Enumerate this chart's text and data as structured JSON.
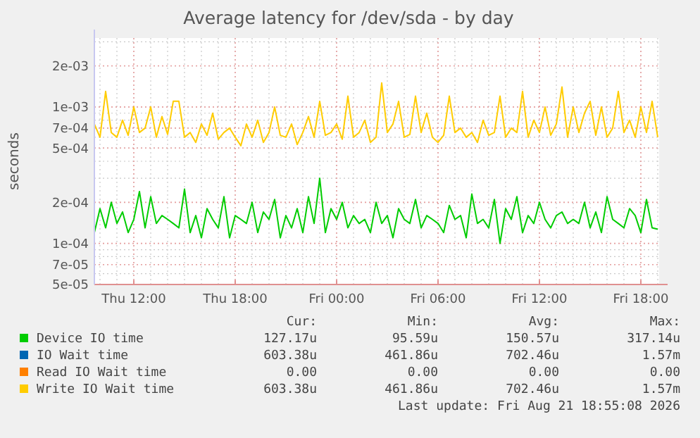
{
  "chart_data": {
    "type": "line",
    "title": "Average latency for /dev/sda - by day",
    "ylabel": "seconds",
    "log": "y",
    "grid": true,
    "legend": "bottom",
    "marker": "none",
    "line_style": "solid",
    "xlim": [
      "2026-08-20T09:40",
      "2026-08-21T19:05"
    ],
    "xticks": [
      {
        "value": "2026-08-20T12:00",
        "label": "Thu 12:00"
      },
      {
        "value": "2026-08-20T18:00",
        "label": "Thu 18:00"
      },
      {
        "value": "2026-08-21T00:00",
        "label": "Fri 00:00"
      },
      {
        "value": "2026-08-21T06:00",
        "label": "Fri 06:00"
      },
      {
        "value": "2026-08-21T12:00",
        "label": "Fri 12:00"
      },
      {
        "value": "2026-08-21T18:00",
        "label": "Fri 18:00"
      }
    ],
    "ylim": [
      5e-05,
      0.0032
    ],
    "yticks": [
      {
        "value": 5e-05,
        "label": "5e-05"
      },
      {
        "value": 7e-05,
        "label": "7e-05"
      },
      {
        "value": 0.0001,
        "label": "1e-04"
      },
      {
        "value": 0.0002,
        "label": "2e-04"
      },
      {
        "value": 0.0005,
        "label": "5e-04"
      },
      {
        "value": 0.0007,
        "label": "7e-04"
      },
      {
        "value": 0.001,
        "label": "1e-03"
      },
      {
        "value": 0.002,
        "label": "2e-03"
      }
    ],
    "x": [
      "2026-08-20T09:40",
      "2026-08-20T10:00",
      "2026-08-20T10:20",
      "2026-08-20T10:40",
      "2026-08-20T11:00",
      "2026-08-20T11:20",
      "2026-08-20T11:40",
      "2026-08-20T12:00",
      "2026-08-20T12:20",
      "2026-08-20T12:40",
      "2026-08-20T13:00",
      "2026-08-20T13:20",
      "2026-08-20T13:40",
      "2026-08-20T14:00",
      "2026-08-20T14:20",
      "2026-08-20T14:40",
      "2026-08-20T15:00",
      "2026-08-20T15:20",
      "2026-08-20T15:40",
      "2026-08-20T16:00",
      "2026-08-20T16:20",
      "2026-08-20T16:40",
      "2026-08-20T17:00",
      "2026-08-20T17:20",
      "2026-08-20T17:40",
      "2026-08-20T18:00",
      "2026-08-20T18:20",
      "2026-08-20T18:40",
      "2026-08-20T19:00",
      "2026-08-20T19:20",
      "2026-08-20T19:40",
      "2026-08-20T20:00",
      "2026-08-20T20:20",
      "2026-08-20T20:40",
      "2026-08-20T21:00",
      "2026-08-20T21:20",
      "2026-08-20T21:40",
      "2026-08-20T22:00",
      "2026-08-20T22:20",
      "2026-08-20T22:40",
      "2026-08-20T23:00",
      "2026-08-20T23:20",
      "2026-08-20T23:40",
      "2026-08-21T00:00",
      "2026-08-21T00:20",
      "2026-08-21T00:40",
      "2026-08-21T01:00",
      "2026-08-21T01:20",
      "2026-08-21T01:40",
      "2026-08-21T02:00",
      "2026-08-21T02:20",
      "2026-08-21T02:40",
      "2026-08-21T03:00",
      "2026-08-21T03:20",
      "2026-08-21T03:40",
      "2026-08-21T04:00",
      "2026-08-21T04:20",
      "2026-08-21T04:40",
      "2026-08-21T05:00",
      "2026-08-21T05:20",
      "2026-08-21T05:40",
      "2026-08-21T06:00",
      "2026-08-21T06:20",
      "2026-08-21T06:40",
      "2026-08-21T07:00",
      "2026-08-21T07:20",
      "2026-08-21T07:40",
      "2026-08-21T08:00",
      "2026-08-21T08:20",
      "2026-08-21T08:40",
      "2026-08-21T09:00",
      "2026-08-21T09:20",
      "2026-08-21T09:40",
      "2026-08-21T10:00",
      "2026-08-21T10:20",
      "2026-08-21T10:40",
      "2026-08-21T11:00",
      "2026-08-21T11:20",
      "2026-08-21T11:40",
      "2026-08-21T12:00",
      "2026-08-21T12:20",
      "2026-08-21T12:40",
      "2026-08-21T13:00",
      "2026-08-21T13:20",
      "2026-08-21T13:40",
      "2026-08-21T14:00",
      "2026-08-21T14:20",
      "2026-08-21T14:40",
      "2026-08-21T15:00",
      "2026-08-21T15:20",
      "2026-08-21T15:40",
      "2026-08-21T16:00",
      "2026-08-21T16:20",
      "2026-08-21T16:40",
      "2026-08-21T17:00",
      "2026-08-21T17:20",
      "2026-08-21T17:40",
      "2026-08-21T18:00",
      "2026-08-21T18:20",
      "2026-08-21T18:40",
      "2026-08-21T19:00"
    ],
    "series": [
      {
        "name": "Device IO time",
        "color": "#00cc00",
        "values": [
          0.00012,
          0.00018,
          0.00013,
          0.0002,
          0.00014,
          0.00017,
          0.00012,
          0.00015,
          0.00024,
          0.00013,
          0.00022,
          0.00014,
          0.00016,
          0.00015,
          0.00014,
          0.00013,
          0.00025,
          0.00012,
          0.00016,
          0.00011,
          0.00018,
          0.00015,
          0.00013,
          0.00022,
          0.00011,
          0.00016,
          0.00015,
          0.00014,
          0.0002,
          0.00012,
          0.00017,
          0.00015,
          0.00021,
          0.00011,
          0.00016,
          0.00013,
          0.00018,
          0.00012,
          0.00022,
          0.00014,
          0.0003,
          0.00012,
          0.00018,
          0.00015,
          0.0002,
          0.00013,
          0.00016,
          0.00014,
          0.00015,
          0.00012,
          0.0002,
          0.00014,
          0.00016,
          0.00011,
          0.00018,
          0.00015,
          0.00014,
          0.00021,
          0.00013,
          0.00016,
          0.00015,
          0.00014,
          0.00012,
          0.00019,
          0.00015,
          0.00016,
          0.00011,
          0.00023,
          0.00014,
          0.00015,
          0.00013,
          0.00021,
          0.0001,
          0.00018,
          0.00015,
          0.00022,
          0.00012,
          0.00016,
          0.00014,
          0.0002,
          0.00015,
          0.00013,
          0.00016,
          0.00017,
          0.00014,
          0.00015,
          0.00014,
          0.0002,
          0.00013,
          0.00017,
          0.00012,
          0.00022,
          0.00015,
          0.00014,
          0.00013,
          0.00018,
          0.00016,
          0.00012,
          0.00021,
          0.00013,
          0.000127
        ]
      },
      {
        "name": "IO Wait time",
        "color": "#0066b3",
        "values": [
          null,
          null,
          null,
          null,
          null,
          null,
          null,
          null,
          null,
          null,
          null,
          null,
          null,
          null,
          null,
          null,
          null,
          null,
          null,
          null,
          null,
          null,
          null,
          null,
          null,
          null,
          null,
          null,
          null,
          null,
          null,
          null,
          null,
          null,
          null,
          null,
          null,
          null,
          null,
          null,
          null,
          null,
          null,
          null,
          null,
          null,
          null,
          null,
          null,
          null,
          null,
          null,
          null,
          null,
          null,
          null,
          null,
          null,
          null,
          null,
          null,
          null,
          null,
          null,
          null,
          null,
          null,
          null,
          null,
          null,
          null,
          null,
          null,
          null,
          null,
          null,
          null,
          null,
          null,
          null,
          null,
          null,
          null,
          null,
          null,
          null,
          null,
          null,
          null,
          null,
          null,
          null,
          null,
          null,
          null,
          null,
          null,
          null,
          null,
          null,
          null
        ]
      },
      {
        "name": "Read IO Wait time",
        "color": "#ff8000",
        "values": [
          null,
          null,
          null,
          null,
          null,
          null,
          null,
          null,
          null,
          null,
          null,
          null,
          null,
          null,
          null,
          null,
          null,
          null,
          null,
          null,
          null,
          null,
          null,
          null,
          null,
          null,
          null,
          null,
          null,
          null,
          null,
          null,
          null,
          null,
          null,
          null,
          null,
          null,
          null,
          null,
          null,
          null,
          null,
          null,
          null,
          null,
          null,
          null,
          null,
          null,
          null,
          null,
          null,
          null,
          null,
          null,
          null,
          null,
          null,
          null,
          null,
          null,
          null,
          null,
          null,
          null,
          null,
          null,
          null,
          null,
          null,
          null,
          null,
          null,
          null,
          null,
          null,
          null,
          null,
          null,
          null,
          null,
          null,
          null,
          null,
          null,
          null,
          null,
          null,
          null,
          null,
          null,
          null,
          null,
          null,
          null,
          null,
          null,
          null,
          null,
          null
        ]
      },
      {
        "name": "Write IO Wait time",
        "color": "#ffcc00",
        "values": [
          0.00075,
          0.0006,
          0.0013,
          0.00065,
          0.0006,
          0.0008,
          0.00062,
          0.001,
          0.00065,
          0.0007,
          0.001,
          0.0006,
          0.00085,
          0.00063,
          0.0011,
          0.0011,
          0.0006,
          0.00065,
          0.00055,
          0.00075,
          0.00062,
          0.0009,
          0.00058,
          0.00065,
          0.0007,
          0.0006,
          0.00052,
          0.00075,
          0.0006,
          0.0008,
          0.00055,
          0.00065,
          0.001,
          0.00062,
          0.0006,
          0.00075,
          0.00053,
          0.00065,
          0.00085,
          0.0006,
          0.0011,
          0.00062,
          0.00065,
          0.00075,
          0.00058,
          0.0012,
          0.0006,
          0.00065,
          0.0008,
          0.00055,
          0.0006,
          0.0015,
          0.00065,
          0.00075,
          0.0011,
          0.0006,
          0.00063,
          0.0012,
          0.00065,
          0.0009,
          0.0006,
          0.00055,
          0.00062,
          0.0012,
          0.00065,
          0.0007,
          0.0006,
          0.00065,
          0.00055,
          0.0008,
          0.00062,
          0.00065,
          0.0012,
          0.0006,
          0.0007,
          0.00065,
          0.0013,
          0.0006,
          0.0008,
          0.00065,
          0.001,
          0.00062,
          0.00075,
          0.0014,
          0.0006,
          0.001,
          0.00065,
          0.0009,
          0.0011,
          0.00062,
          0.001,
          0.0006,
          0.0007,
          0.0013,
          0.00065,
          0.0008,
          0.0006,
          0.001,
          0.00065,
          0.0011,
          0.0006
        ]
      }
    ],
    "annotations": [
      "Cur:",
      "Min:",
      "Avg:",
      "Max:",
      "127.17u",
      "95.59u",
      "150.57u",
      "317.14u",
      "603.38u",
      "461.86u",
      "702.46u",
      "1.57m",
      "0.00",
      "0.00",
      "0.00",
      "0.00",
      "603.38u",
      "461.86u",
      "702.46u",
      "1.57m",
      "Last update: Fri Aug 21 18:55:08 2026"
    ]
  }
}
